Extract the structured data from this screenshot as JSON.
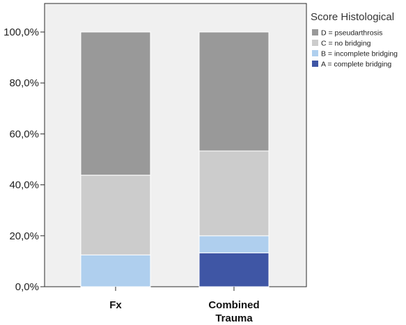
{
  "chart_data": {
    "type": "bar",
    "stacked": true,
    "categories": [
      [
        "Fx"
      ],
      [
        "Combined",
        "Trauma"
      ]
    ],
    "series": [
      {
        "name": "A = complete bridging",
        "color": "#3f56a5",
        "values": [
          0.0,
          13.3
        ]
      },
      {
        "name": "B = incomplete bridging",
        "color": "#afcfee",
        "values": [
          12.5,
          6.7
        ]
      },
      {
        "name": "C = no bridging",
        "color": "#cccccc",
        "values": [
          31.3,
          33.3
        ]
      },
      {
        "name": "D = pseudarthrosis",
        "color": "#999999",
        "values": [
          56.2,
          46.7
        ]
      }
    ],
    "ylim": [
      0,
      100
    ],
    "yticks": [
      0,
      20,
      40,
      60,
      80,
      100
    ],
    "ytick_labels": [
      "0,0%",
      "20,0%",
      "40,0%",
      "60,0%",
      "80,0%",
      "100,0%"
    ],
    "plot_background": "#f0f0f0",
    "legend": {
      "title": "Score Histological",
      "placement": "right",
      "order": [
        "D = pseudarthrosis",
        "C = no bridging",
        "B = incomplete bridging",
        "A = complete bridging"
      ]
    }
  }
}
